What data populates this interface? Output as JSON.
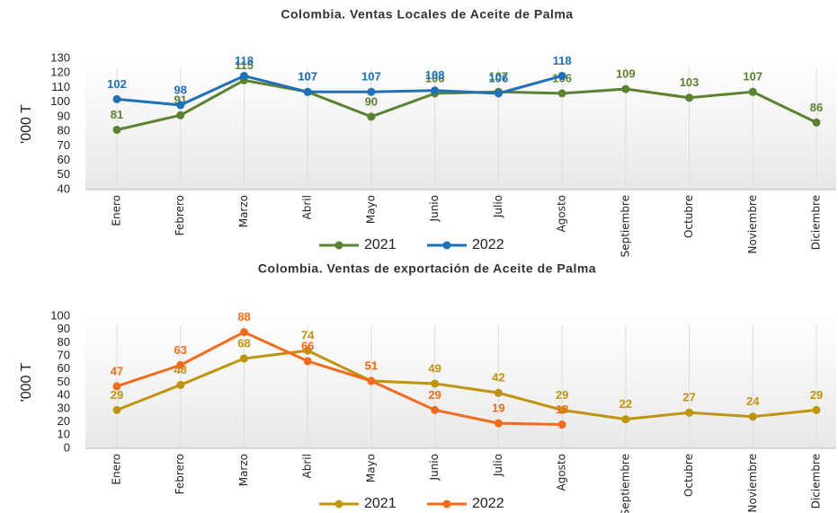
{
  "chart_data": [
    {
      "type": "line",
      "title": "Colombia. Ventas Locales de Aceite de Palma",
      "y_label": "'000 T",
      "categories": [
        "Enero",
        "Febrero",
        "Marzo",
        "Abril",
        "Mayo",
        "Junio",
        "Julio",
        "Agosto",
        "Septiembre",
        "Octubre",
        "Noviembre",
        "Diciembre"
      ],
      "series": [
        {
          "name": "2021",
          "color": "#5b8231",
          "values": [
            81,
            91,
            115,
            107,
            90,
            106,
            107,
            106,
            109,
            103,
            107,
            86
          ]
        },
        {
          "name": "2022",
          "color": "#1f70b8",
          "values": [
            102,
            98,
            118,
            107,
            107,
            108,
            106,
            118,
            null,
            null,
            null,
            null
          ]
        }
      ],
      "ylim": [
        40,
        130
      ],
      "yticks": [
        40,
        50,
        60,
        70,
        80,
        90,
        100,
        110,
        120,
        130
      ],
      "legend": "bottom"
    },
    {
      "type": "line",
      "title": "Colombia. Ventas de exportación de Aceite de Palma",
      "y_label": "'000 T",
      "categories": [
        "Enero",
        "Febrero",
        "Marzo",
        "Abril",
        "Mayo",
        "Junio",
        "Julio",
        "Agosto",
        "Septiembre",
        "Octubre",
        "Noviembre",
        "Diciembre"
      ],
      "series": [
        {
          "name": "2021",
          "color": "#bf9410",
          "values": [
            29,
            48,
            68,
            74,
            51,
            49,
            42,
            29,
            22,
            27,
            24,
            29
          ]
        },
        {
          "name": "2022",
          "color": "#f26b1d",
          "values": [
            47,
            63,
            88,
            66,
            51,
            29,
            19,
            18,
            null,
            null,
            null,
            null
          ]
        }
      ],
      "ylim": [
        0,
        100
      ],
      "yticks": [
        0,
        10,
        20,
        30,
        40,
        50,
        60,
        70,
        80,
        90,
        100
      ],
      "legend": "bottom"
    }
  ]
}
